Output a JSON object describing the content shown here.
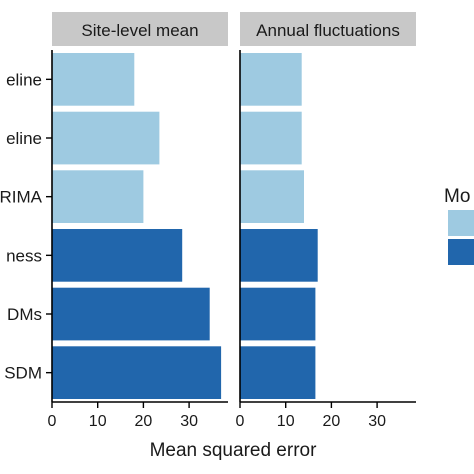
{
  "chart_data": {
    "type": "bar",
    "orientation": "horizontal",
    "categories": [
      "eline",
      "eline",
      "RIMA",
      "ness",
      "DMs",
      "SDM"
    ],
    "category_group": [
      "baseline",
      "baseline",
      "baseline",
      "model",
      "model",
      "model"
    ],
    "panels": [
      {
        "title": "Site-level mean",
        "values": [
          18,
          23.5,
          20,
          28.5,
          34.5,
          37
        ]
      },
      {
        "title": "Annual fluctuations",
        "values": [
          13.5,
          13.5,
          14,
          17,
          16.5,
          16.5
        ]
      }
    ],
    "xlabel": "Mean squared error",
    "ylabel": "",
    "xticks": [
      0,
      10,
      20,
      30
    ],
    "xlim": [
      0,
      38.5
    ],
    "colors": {
      "baseline": "#9ecae1",
      "model": "#2166ac"
    },
    "legend": {
      "title": "Mo",
      "placement": "right",
      "entries": [
        "",
        ""
      ]
    },
    "strip_color": "#c8c8c8",
    "grid": false
  }
}
